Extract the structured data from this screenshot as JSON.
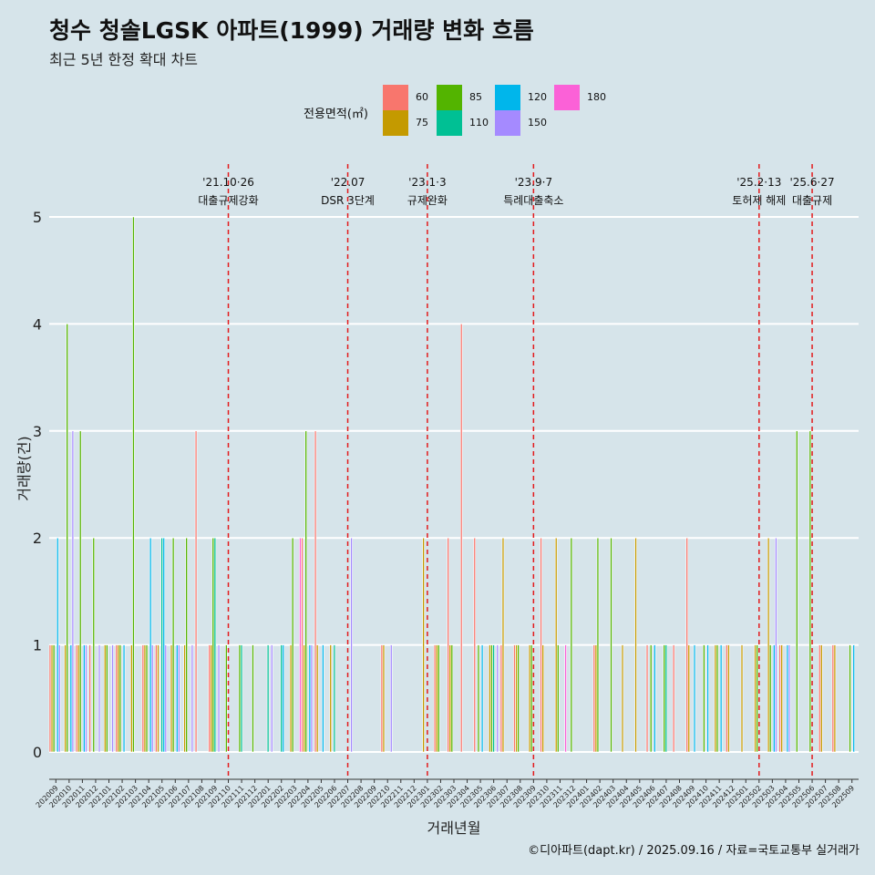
{
  "title": "청수 청솔LGSK 아파트(1999) 거래량 변화 흐름",
  "subtitle": "최근 5년 한정 확대 차트",
  "caption": "©디아파트(dapt.kr) / 2025.09.16 / 자료=국토교통부 실거래가",
  "legend": {
    "title": "전용면적(㎡)",
    "items": [
      {
        "label": "60",
        "color": "#f8766d"
      },
      {
        "label": "75",
        "color": "#c49a00"
      },
      {
        "label": "85",
        "color": "#53b400"
      },
      {
        "label": "110",
        "color": "#00c094"
      },
      {
        "label": "120",
        "color": "#00b6eb"
      },
      {
        "label": "150",
        "color": "#a58aff"
      },
      {
        "label": "180",
        "color": "#fb61d7"
      }
    ]
  },
  "chart_data": {
    "type": "bar",
    "xlabel": "거래년월",
    "ylabel": "거래량(건)",
    "ylim": [
      0,
      5
    ],
    "yticks": [
      0,
      1,
      2,
      3,
      4,
      5
    ],
    "grid": true,
    "legend_position": "top",
    "categories": [
      "202009",
      "202010",
      "202011",
      "202012",
      "202101",
      "202102",
      "202103",
      "202104",
      "202105",
      "202106",
      "202107",
      "202108",
      "202109",
      "202110",
      "202111",
      "202112",
      "202201",
      "202202",
      "202203",
      "202204",
      "202205",
      "202206",
      "202207",
      "202208",
      "202209",
      "202210",
      "202211",
      "202212",
      "202301",
      "202302",
      "202303",
      "202304",
      "202305",
      "202306",
      "202307",
      "202308",
      "202309",
      "202310",
      "202311",
      "202312",
      "202401",
      "202402",
      "202403",
      "202404",
      "202405",
      "202406",
      "202407",
      "202408",
      "202409",
      "202410",
      "202411",
      "202412",
      "202501",
      "202502",
      "202503",
      "202504",
      "202505",
      "202506",
      "202507",
      "202508",
      "202509"
    ],
    "series": [
      {
        "name": "60",
        "values": [
          1,
          0,
          1,
          1,
          0,
          1,
          0,
          1,
          1,
          0,
          0,
          3,
          1,
          0,
          0,
          0,
          0,
          0,
          0,
          2,
          3,
          0,
          0,
          0,
          0,
          1,
          0,
          0,
          0,
          1,
          2,
          4,
          2,
          0,
          1,
          1,
          0,
          2,
          0,
          0,
          0,
          1,
          0,
          0,
          0,
          1,
          0,
          1,
          2,
          0,
          0,
          1,
          0,
          0,
          0,
          1,
          0,
          0,
          1,
          1,
          0
        ]
      },
      {
        "name": "75",
        "values": [
          1,
          1,
          1,
          0,
          1,
          1,
          1,
          1,
          1,
          1,
          1,
          0,
          1,
          0,
          0,
          0,
          0,
          0,
          1,
          1,
          1,
          1,
          0,
          0,
          0,
          1,
          0,
          0,
          2,
          1,
          1,
          0,
          0,
          1,
          2,
          1,
          1,
          1,
          2,
          0,
          0,
          1,
          0,
          1,
          2,
          0,
          0,
          0,
          1,
          0,
          1,
          1,
          1,
          1,
          2,
          1,
          0,
          0,
          1,
          1,
          0
        ]
      },
      {
        "name": "85",
        "values": [
          1,
          4,
          3,
          2,
          1,
          1,
          5,
          1,
          0,
          2,
          2,
          0,
          2,
          1,
          1,
          1,
          0,
          0,
          2,
          3,
          0,
          0,
          0,
          0,
          0,
          0,
          0,
          0,
          0,
          1,
          1,
          0,
          1,
          1,
          0,
          1,
          1,
          0,
          1,
          2,
          0,
          2,
          2,
          0,
          0,
          1,
          1,
          0,
          0,
          1,
          1,
          0,
          0,
          1,
          1,
          0,
          3,
          3,
          0,
          0,
          1
        ]
      },
      {
        "name": "110",
        "values": [
          0,
          0,
          0,
          0,
          0,
          0,
          0,
          0,
          2,
          0,
          0,
          0,
          2,
          0,
          1,
          0,
          1,
          1,
          0,
          0,
          0,
          1,
          0,
          0,
          0,
          0,
          0,
          0,
          0,
          0,
          0,
          0,
          0,
          1,
          0,
          0,
          0,
          0,
          0,
          0,
          0,
          0,
          0,
          0,
          0,
          0,
          1,
          0,
          0,
          0,
          0,
          0,
          0,
          0,
          0,
          0,
          0,
          0,
          0,
          0,
          0
        ]
      },
      {
        "name": "120",
        "values": [
          2,
          1,
          1,
          0,
          0,
          1,
          0,
          2,
          2,
          1,
          0,
          0,
          0,
          0,
          0,
          0,
          0,
          1,
          0,
          1,
          1,
          0,
          0,
          0,
          0,
          0,
          0,
          0,
          0,
          0,
          0,
          0,
          1,
          0,
          0,
          0,
          0,
          0,
          0,
          0,
          0,
          0,
          0,
          0,
          0,
          1,
          0,
          0,
          1,
          1,
          1,
          0,
          0,
          0,
          1,
          1,
          0,
          0,
          0,
          0,
          1
        ]
      },
      {
        "name": "150",
        "values": [
          1,
          3,
          1,
          1,
          1,
          0,
          0,
          1,
          1,
          1,
          1,
          0,
          1,
          0,
          0,
          0,
          1,
          0,
          0,
          1,
          0,
          0,
          2,
          0,
          0,
          1,
          0,
          0,
          0,
          0,
          0,
          0,
          0,
          1,
          0,
          0,
          0,
          0,
          0,
          0,
          0,
          0,
          0,
          0,
          0,
          0,
          0,
          0,
          0,
          0,
          0,
          0,
          0,
          0,
          2,
          1,
          0,
          0,
          0,
          0,
          0
        ]
      },
      {
        "name": "180",
        "values": [
          0,
          0,
          0,
          0,
          0,
          0,
          0,
          0,
          0,
          0,
          0,
          0,
          0,
          0,
          0,
          0,
          0,
          0,
          2,
          0,
          0,
          0,
          0,
          0,
          0,
          0,
          0,
          0,
          0,
          0,
          0,
          0,
          0,
          0,
          0,
          0,
          0,
          0,
          1,
          0,
          0,
          0,
          0,
          0,
          0,
          0,
          0,
          0,
          0,
          0,
          0,
          0,
          0,
          0,
          0,
          0,
          0,
          0,
          0,
          0,
          0
        ]
      }
    ],
    "annotations": [
      {
        "date": "'21.10·26",
        "label": "대출규제강화",
        "at": "202110"
      },
      {
        "date": "'22.07",
        "label": "DSR 3단계",
        "at": "202207"
      },
      {
        "date": "'23.1·3",
        "label": "규제완화",
        "at": "202301"
      },
      {
        "date": "'23.9·7",
        "label": "특례대출축소",
        "at": "202309"
      },
      {
        "date": "'25.2·13",
        "label": "토허제 해제",
        "at": "202502"
      },
      {
        "date": "'25.6·27",
        "label": "대출규제",
        "at": "202506"
      }
    ]
  }
}
